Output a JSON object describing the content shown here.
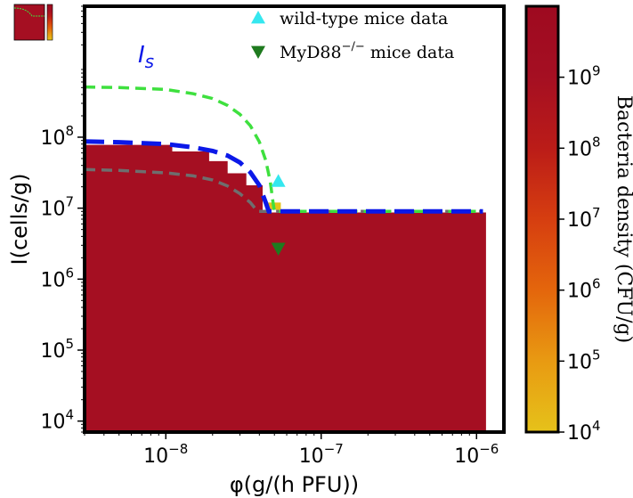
{
  "chart_data": {
    "type": "heatmap",
    "x_scale": "log",
    "y_scale": "log",
    "xlim": [
      3e-09,
      1.5e-06
    ],
    "ylim": [
      7000.0,
      7000000000.0
    ],
    "xlabel": "φ(g/(h PFU))",
    "ylabel": "I(cells/g)",
    "x_ticks": [
      {
        "value": 1e-08,
        "label": "10^-8"
      },
      {
        "value": 1e-07,
        "label": "10^-7"
      },
      {
        "value": 1e-06,
        "label": "10^-6"
      }
    ],
    "y_ticks": [
      {
        "value": 10000.0,
        "label": "10^4"
      },
      {
        "value": 100000.0,
        "label": "10^5"
      },
      {
        "value": 1000000.0,
        "label": "10^6"
      },
      {
        "value": 10000000.0,
        "label": "10^7"
      },
      {
        "value": 100000000.0,
        "label": "10^8"
      }
    ],
    "filled_region": {
      "color": "#a50f22",
      "boundary": [
        {
          "x": 3e-09,
          "y": 78000000.0
        },
        {
          "x": 1.1e-08,
          "y": 78000000.0
        },
        {
          "x": 1.1e-08,
          "y": 63000000.0
        },
        {
          "x": 1.9e-08,
          "y": 63000000.0
        },
        {
          "x": 1.9e-08,
          "y": 46000000.0
        },
        {
          "x": 2.5e-08,
          "y": 46000000.0
        },
        {
          "x": 2.5e-08,
          "y": 31000000.0
        },
        {
          "x": 3.3e-08,
          "y": 31000000.0
        },
        {
          "x": 3.3e-08,
          "y": 21000000.0
        },
        {
          "x": 4.2e-08,
          "y": 21000000.0
        },
        {
          "x": 4.2e-08,
          "y": 8700000.0
        },
        {
          "x": 1.15e-06,
          "y": 8700000.0
        }
      ]
    },
    "small_patch": {
      "x": [
        4.5e-08,
        5.5e-08
      ],
      "y": [
        9500000.0,
        12000000.0
      ],
      "color": "#e6c21a"
    },
    "curves": [
      {
        "label": "I_s",
        "color": "#0b18e8",
        "style": "long-dash",
        "points": [
          [
            3e-09,
            87000000.0
          ],
          [
            5e-09,
            85000000.0
          ],
          [
            1e-08,
            80000000.0
          ],
          [
            1.5e-08,
            72000000.0
          ],
          [
            2e-08,
            64000000.0
          ],
          [
            2.5e-08,
            55000000.0
          ],
          [
            3e-08,
            44000000.0
          ],
          [
            3.5e-08,
            32000000.0
          ],
          [
            4e-08,
            21000000.0
          ],
          [
            4.4e-08,
            12000000.0
          ],
          [
            4.6e-08,
            9000000.0
          ],
          [
            1.1e-06,
            9000000.0
          ]
        ]
      },
      {
        "label": "",
        "color": "#3ee03e",
        "style": "dash",
        "points": [
          [
            3e-09,
            510000000.0
          ],
          [
            5e-09,
            500000000.0
          ],
          [
            1e-08,
            470000000.0
          ],
          [
            1.5e-08,
            410000000.0
          ],
          [
            2e-08,
            350000000.0
          ],
          [
            2.5e-08,
            280000000.0
          ],
          [
            3e-08,
            210000000.0
          ],
          [
            3.5e-08,
            145000000.0
          ],
          [
            4e-08,
            86000000.0
          ],
          [
            4.4e-08,
            47000000.0
          ],
          [
            4.7e-08,
            24000000.0
          ],
          [
            4.9e-08,
            12000000.0
          ],
          [
            5e-08,
            9000000.0
          ],
          [
            1.1e-06,
            9000000.0
          ]
        ]
      },
      {
        "label": "",
        "color": "#6e6e6e",
        "style": "dash",
        "points": [
          [
            3e-09,
            35000000.0
          ],
          [
            5e-09,
            34000000.0
          ],
          [
            1e-08,
            31500000.0
          ],
          [
            1.5e-08,
            28500000.0
          ],
          [
            2e-08,
            25000000.0
          ],
          [
            2.5e-08,
            20500000.0
          ],
          [
            3e-08,
            16000000.0
          ],
          [
            3.5e-08,
            12000000.0
          ],
          [
            3.9e-08,
            9000000.0
          ],
          [
            1.1e-06,
            9000000.0
          ]
        ]
      }
    ],
    "points": [
      {
        "series": "wild-type mice data",
        "x": 5.3e-08,
        "y": 24000000.0,
        "marker": "triangle-up",
        "color": "#35e7ef"
      },
      {
        "series": "MyD88^-/- mice data",
        "x": 5.3e-08,
        "y": 2700000.0,
        "marker": "triangle-down",
        "color": "#1f7a1f"
      }
    ],
    "legend": {
      "placement": "top-right",
      "entries": [
        {
          "label": "wild-type mice data",
          "marker": "triangle-up",
          "color": "#35e7ef"
        },
        {
          "label": "MyD88",
          "sup": "−/−",
          "label_tail": " mice data",
          "marker": "triangle-down",
          "color": "#1f7a1f"
        }
      ]
    },
    "colorbar": {
      "label": "Bacteria density (CFU/g)",
      "scale": "log",
      "range": [
        10000.0,
        10000000000.0
      ],
      "ticks": [
        {
          "value": 10000.0,
          "label": "10^4"
        },
        {
          "value": 100000.0,
          "label": "10^5"
        },
        {
          "value": 1000000.0,
          "label": "10^6"
        },
        {
          "value": 10000000.0,
          "label": "10^7"
        },
        {
          "value": 100000000.0,
          "label": "10^8"
        },
        {
          "value": 1000000000.0,
          "label": "10^9"
        }
      ],
      "colors": [
        "#e6c21a",
        "#e89a12",
        "#e4660c",
        "#d63e10",
        "#bb1c18",
        "#a50f22",
        "#9e0a20"
      ]
    },
    "curve_label": {
      "base": "I",
      "sub": "s"
    },
    "grid": false
  }
}
